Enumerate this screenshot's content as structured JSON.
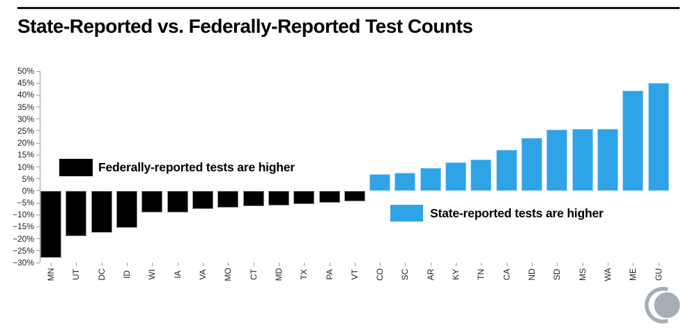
{
  "chart_data": {
    "type": "bar",
    "title": "State-Reported vs. Federally-Reported Test Counts",
    "xlabel": "",
    "ylabel": "",
    "categories": [
      "MN",
      "UT",
      "DC",
      "ID",
      "WI",
      "IA",
      "VA",
      "MO",
      "CT",
      "MD",
      "TX",
      "PA",
      "VT",
      "CO",
      "SC",
      "AR",
      "KY",
      "TN",
      "CA",
      "ND",
      "SD",
      "MS",
      "WA",
      "ME",
      "GU"
    ],
    "values": [
      -28,
      -19,
      -17.5,
      -15.5,
      -9,
      -9,
      -7.5,
      -7,
      -6.5,
      -6,
      -5.5,
      -5,
      -4.5,
      7,
      7.5,
      9.5,
      12,
      13,
      17,
      22,
      25.5,
      26,
      26,
      42,
      45
    ],
    "unit": "%",
    "ylim": [
      -30,
      50
    ],
    "grid": false,
    "y_ticks": {
      "values": [
        50,
        45,
        40,
        35,
        30,
        25,
        20,
        15,
        10,
        5,
        0,
        -5,
        -10,
        -15,
        -20,
        -25,
        -30
      ],
      "labels": [
        "50%",
        "45%",
        "40%",
        "35%",
        "30%",
        "25%",
        "20%",
        "15%",
        "10%",
        "5%",
        "0%",
        "−5%",
        "−10%",
        "−15%",
        "−20%",
        "−25%",
        "−30%"
      ]
    },
    "colors": {
      "negative": "#000000",
      "positive": "#2FA3E8"
    },
    "legend_position": "inside-plot",
    "legend": [
      {
        "label": "Federally-reported tests are higher",
        "color": "#000000"
      },
      {
        "label": "State-reported tests are higher",
        "color": "#2FA3E8"
      }
    ]
  },
  "branding": {
    "logo": "covid-tracking-project-crescent",
    "color": "#A6AEB5"
  },
  "style": {
    "top_rule_color": "#111111",
    "axis_color": "#999999",
    "tick_label_color": "#222222"
  }
}
